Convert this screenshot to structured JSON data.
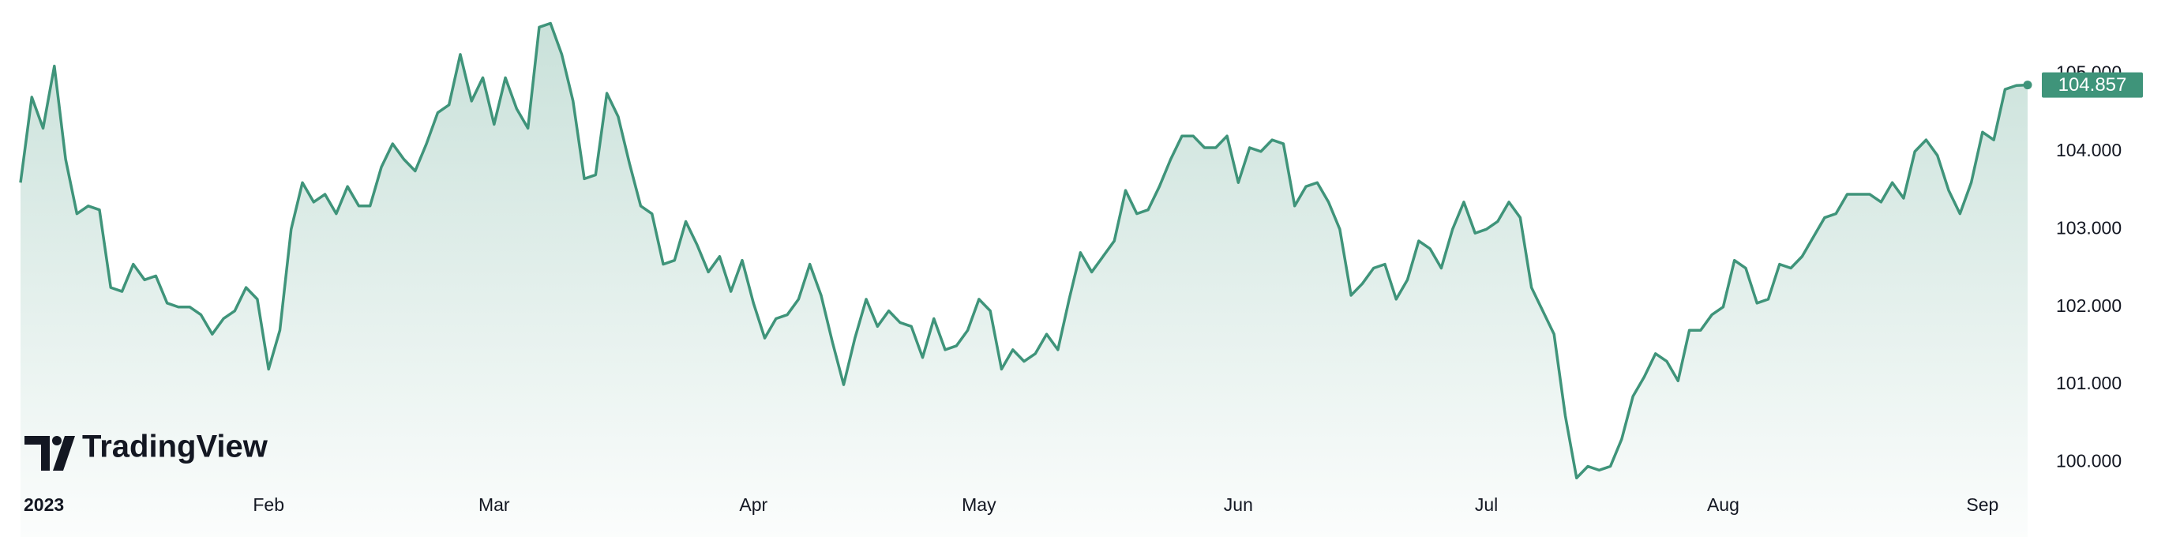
{
  "chart_data": {
    "type": "area",
    "watermark": "TradingView",
    "categories": [
      "2023",
      null,
      null,
      null,
      null,
      null,
      null,
      null,
      null,
      null,
      null,
      null,
      null,
      null,
      null,
      null,
      null,
      null,
      null,
      null,
      null,
      null,
      "Feb",
      null,
      null,
      null,
      null,
      null,
      null,
      null,
      null,
      null,
      null,
      null,
      null,
      null,
      null,
      null,
      null,
      null,
      null,
      null,
      "Mar",
      null,
      null,
      null,
      null,
      null,
      null,
      null,
      null,
      null,
      null,
      null,
      null,
      null,
      null,
      null,
      null,
      null,
      null,
      null,
      null,
      null,
      null,
      "Apr",
      null,
      null,
      null,
      null,
      null,
      null,
      null,
      null,
      null,
      null,
      null,
      null,
      null,
      null,
      null,
      null,
      null,
      null,
      null,
      "May",
      null,
      null,
      null,
      null,
      null,
      null,
      null,
      null,
      null,
      null,
      null,
      null,
      null,
      null,
      null,
      null,
      null,
      null,
      null,
      null,
      null,
      null,
      "Jun",
      null,
      null,
      null,
      null,
      null,
      null,
      null,
      null,
      null,
      null,
      null,
      null,
      null,
      null,
      null,
      null,
      null,
      null,
      null,
      null,
      null,
      "Jul",
      null,
      null,
      null,
      null,
      null,
      null,
      null,
      null,
      null,
      null,
      null,
      null,
      null,
      null,
      null,
      null,
      null,
      null,
      null,
      null,
      "Aug",
      null,
      null,
      null,
      null,
      null,
      null,
      null,
      null,
      null,
      null,
      null,
      null,
      null,
      null,
      null,
      null,
      null,
      null,
      null,
      null,
      null,
      null,
      "Sep",
      null,
      null,
      null,
      null
    ],
    "series": [
      {
        "color": "#3f947a",
        "values": [
          103.6,
          104.7,
          104.3,
          105.1,
          103.9,
          103.2,
          103.3,
          103.25,
          102.25,
          102.2,
          102.55,
          102.35,
          102.4,
          102.05,
          102.0,
          102.0,
          101.9,
          101.65,
          101.85,
          101.95,
          102.25,
          102.1,
          101.2,
          101.7,
          103.0,
          103.6,
          103.35,
          103.45,
          103.2,
          103.55,
          103.3,
          103.3,
          103.8,
          104.1,
          103.9,
          103.75,
          104.1,
          104.5,
          104.6,
          105.25,
          104.65,
          104.95,
          104.35,
          104.95,
          104.55,
          104.3,
          105.6,
          105.65,
          105.25,
          104.65,
          103.65,
          103.7,
          104.75,
          104.45,
          103.85,
          103.3,
          103.2,
          102.55,
          102.6,
          103.1,
          102.8,
          102.45,
          102.65,
          102.2,
          102.6,
          102.05,
          101.6,
          101.85,
          101.9,
          102.1,
          102.55,
          102.15,
          101.55,
          101.0,
          101.6,
          102.1,
          101.75,
          101.95,
          101.8,
          101.75,
          101.35,
          101.85,
          101.45,
          101.5,
          101.7,
          102.1,
          101.95,
          101.2,
          101.45,
          101.3,
          101.4,
          101.65,
          101.45,
          102.1,
          102.7,
          102.45,
          102.65,
          102.85,
          103.5,
          103.2,
          103.25,
          103.55,
          103.9,
          104.2,
          104.2,
          104.05,
          104.05,
          104.2,
          103.6,
          104.05,
          104.0,
          104.15,
          104.1,
          103.3,
          103.55,
          103.6,
          103.35,
          103.0,
          102.15,
          102.3,
          102.5,
          102.55,
          102.1,
          102.35,
          102.85,
          102.75,
          102.5,
          103.0,
          103.35,
          102.95,
          103.0,
          103.1,
          103.35,
          103.15,
          102.25,
          101.95,
          101.65,
          100.6,
          99.8,
          99.95,
          99.9,
          99.95,
          100.3,
          100.85,
          101.1,
          101.4,
          101.3,
          101.05,
          101.7,
          101.7,
          101.9,
          102.0,
          102.6,
          102.5,
          102.05,
          102.1,
          102.55,
          102.5,
          102.65,
          102.9,
          103.15,
          103.2,
          103.45,
          103.45,
          103.45,
          103.35,
          103.6,
          103.4,
          104.0,
          104.15,
          103.95,
          103.5,
          103.2,
          103.6,
          104.25,
          104.15,
          104.8,
          104.85,
          104.857
        ]
      }
    ],
    "ylim": [
      99.65,
      105.95
    ],
    "yticks": [
      {
        "value": 100,
        "label": "100.000"
      },
      {
        "value": 101,
        "label": "101.000"
      },
      {
        "value": 102,
        "label": "102.000"
      },
      {
        "value": 103,
        "label": "103.000"
      },
      {
        "value": 104,
        "label": "104.000"
      },
      {
        "value": 105,
        "label": "105.000"
      }
    ]
  }
}
